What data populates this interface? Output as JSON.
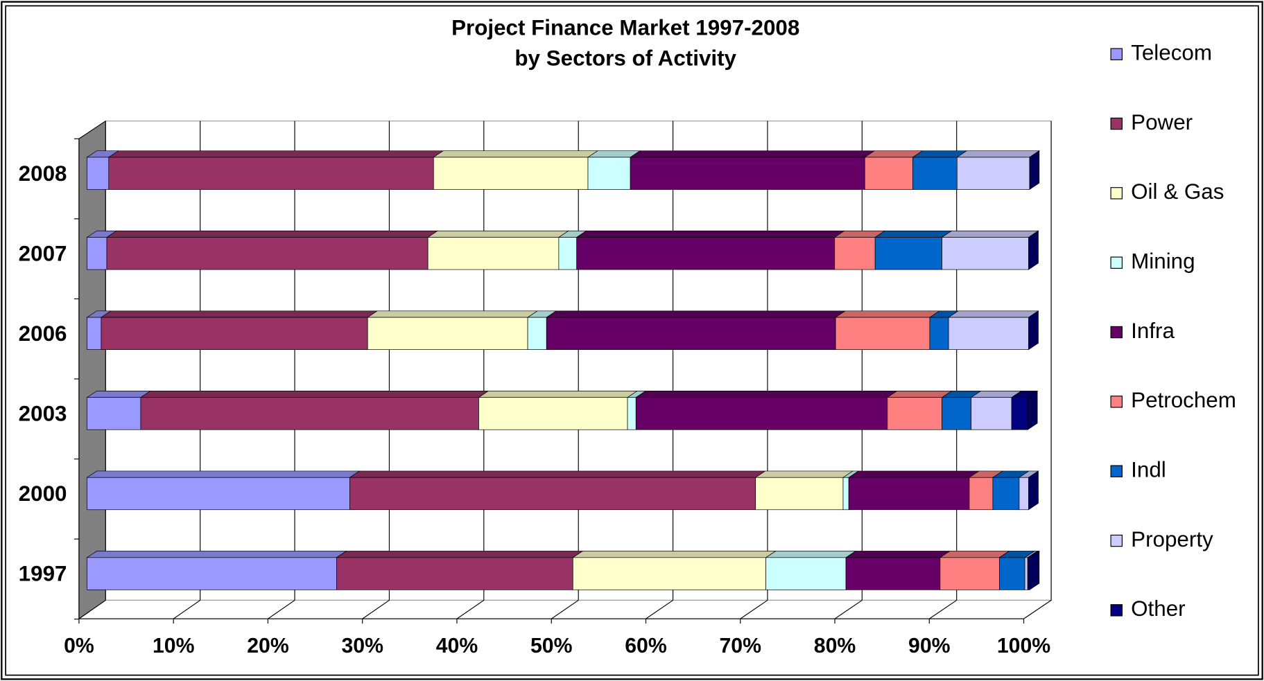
{
  "chart_data": {
    "type": "stacked_bar_horizontal",
    "title": [
      "Project Finance Market 1997-2008",
      "by Sectors of Activity"
    ],
    "categories": [
      "2008",
      "2007",
      "2006",
      "2003",
      "2000",
      "1997"
    ],
    "series": [
      {
        "name": "Telecom",
        "color": "#9999ff",
        "values": [
          2.3,
          2.1,
          1.5,
          5.7,
          27.9,
          26.5
        ]
      },
      {
        "name": "Power",
        "color": "#993366",
        "values": [
          34.5,
          34.1,
          28.3,
          35.9,
          43.1,
          25.1
        ]
      },
      {
        "name": "Oil & Gas",
        "color": "#ffffcc",
        "values": [
          16.4,
          13.9,
          17.0,
          15.8,
          9.3,
          20.5
        ]
      },
      {
        "name": "Mining",
        "color": "#ccffff",
        "values": [
          4.5,
          1.9,
          2.0,
          0.9,
          0.6,
          8.5
        ]
      },
      {
        "name": "Infra",
        "color": "#660066",
        "values": [
          24.9,
          27.4,
          30.7,
          26.7,
          12.8,
          10.0
        ]
      },
      {
        "name": "Petrochem",
        "color": "#ff8080",
        "values": [
          5.1,
          4.3,
          10.0,
          5.8,
          2.5,
          6.3
        ]
      },
      {
        "name": "Indl",
        "color": "#0066cc",
        "values": [
          4.7,
          7.1,
          2.0,
          3.1,
          2.8,
          2.7
        ]
      },
      {
        "name": "Property",
        "color": "#ccccff",
        "values": [
          7.7,
          9.2,
          8.5,
          4.3,
          1.0,
          0.3
        ]
      },
      {
        "name": "Other",
        "color": "#000080",
        "values": [
          0,
          0,
          0,
          1.7,
          0,
          0.2
        ]
      }
    ],
    "xlim": [
      0,
      100
    ],
    "xticks": [
      {
        "value": 0,
        "label": "0%"
      },
      {
        "value": 10,
        "label": "10%"
      },
      {
        "value": 20,
        "label": "20%"
      },
      {
        "value": 30,
        "label": "30%"
      },
      {
        "value": 40,
        "label": "40%"
      },
      {
        "value": 50,
        "label": "50%"
      },
      {
        "value": 60,
        "label": "60%"
      },
      {
        "value": 70,
        "label": "70%"
      },
      {
        "value": 80,
        "label": "80%"
      },
      {
        "value": 90,
        "label": "90%"
      },
      {
        "value": 100,
        "label": "100%"
      }
    ],
    "grid": true,
    "legend": "right"
  }
}
